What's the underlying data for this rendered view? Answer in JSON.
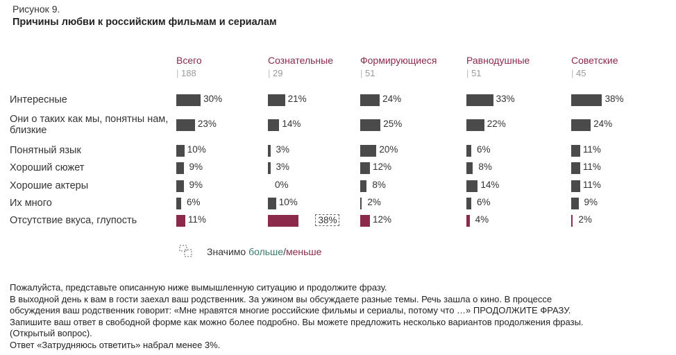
{
  "figure_label": "Рисунок 9.",
  "chart_data": {
    "type": "bar",
    "title": "Причины любви к российским фильмам и сериалам",
    "categories": [
      "Интересные",
      "Они о таких как мы, понятны нам, близкие",
      "Понятный язык",
      "Хороший сюжет",
      "Хорошие актеры",
      "Их много",
      "Отсутствие вкуса, глупость"
    ],
    "highlight_category": "Отсутствие вкуса, глупость",
    "series": [
      {
        "name": "Всего",
        "n": "188",
        "values": [
          30,
          23,
          10,
          9,
          9,
          6,
          11
        ]
      },
      {
        "name": "Сознательные",
        "n": "29",
        "values": [
          21,
          14,
          3,
          3,
          0,
          10,
          38
        ],
        "significant": [
          6
        ]
      },
      {
        "name": "Формирующиеся",
        "n": "51",
        "values": [
          24,
          25,
          20,
          12,
          8,
          2,
          12
        ]
      },
      {
        "name": "Равнодушные",
        "n": "51",
        "values": [
          33,
          22,
          6,
          8,
          14,
          6,
          4
        ]
      },
      {
        "name": "Советские",
        "n": "45",
        "values": [
          38,
          24,
          11,
          11,
          11,
          9,
          2
        ]
      }
    ],
    "unit": "%",
    "colors": {
      "bar": "#4a4a4a",
      "highlight": "#8b2a4a",
      "header": "#8b2a4a",
      "more": "#3a7a6a",
      "less": "#8b2a4a"
    }
  },
  "legend": {
    "prefix": "Значимо ",
    "more": "больше",
    "sep": "/",
    "less": "меньше"
  },
  "notes": [
    "Пожалуйста, представьте описанную ниже вымышленную ситуацию и продолжите фразу.",
    "В выходной день к вам в гости заехал ваш родственник. За ужином вы обсуждаете разные темы. Речь зашла о кино. В процессе",
    "обсуждения ваш родственник говорит: «Мне нравятся многие российские фильмы и сериалы, потому что …» ПРОДОЛЖИТЕ ФРАЗУ.",
    "Запишите ваш ответ в свободной форме как можно более подробно. Вы можете предложить несколько вариантов продолжения фразы.",
    "(Открытый вопрос).",
    "Ответ «Затрудняюсь ответить» набрал менее 3%."
  ]
}
